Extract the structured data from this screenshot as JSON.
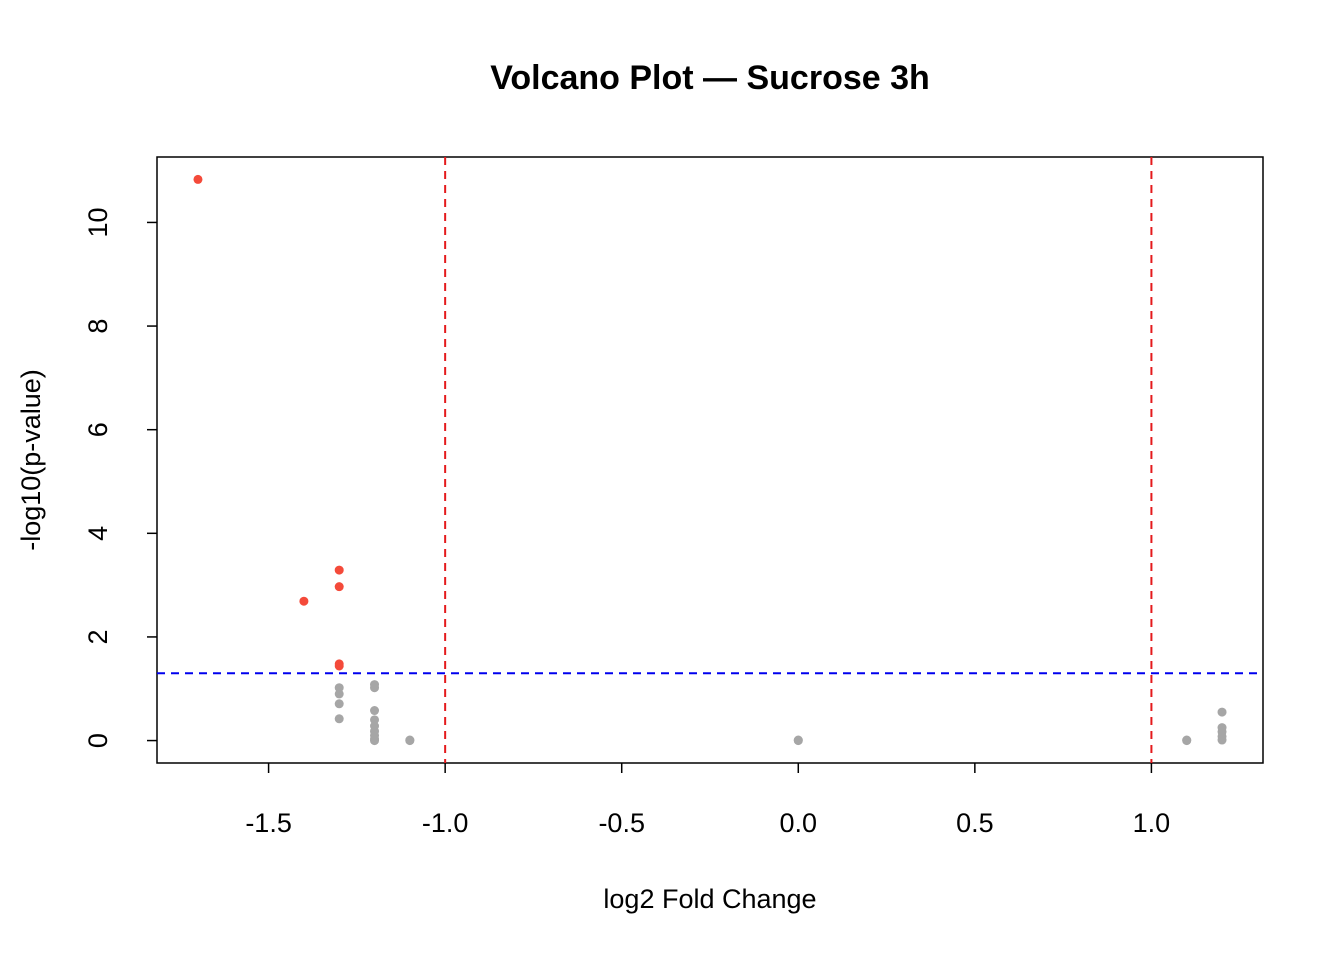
{
  "chart_data": {
    "type": "scatter",
    "title": "Volcano Plot — Sucrose 3h",
    "x_label": "log2 Fold Change",
    "y_label": "-log10(p-value)",
    "xlim": [
      -1.816,
      1.316
    ],
    "ylim": [
      -0.433,
      11.263
    ],
    "xticks": [
      -1.5,
      {
        "value": -1.0,
        "label": "-1.0"
      },
      -0.5,
      {
        "value": 0.0,
        "label": "0.0"
      },
      0.5,
      {
        "value": 1.0,
        "label": "1.0"
      }
    ],
    "yticks": [
      0,
      2,
      4,
      6,
      8,
      10
    ],
    "vlines": [
      -1,
      1
    ],
    "vline_color": "#e41a1c",
    "hline": 1.3,
    "hline_color": "#0000ee",
    "series": [
      {
        "color": "#f44a3a",
        "x": [
          -1.7,
          -1.4,
          -1.3,
          -1.3,
          -1.3,
          -1.3
        ],
        "values": [
          10.83,
          2.69,
          3.29,
          2.97,
          1.48,
          1.44
        ]
      },
      {
        "color": "#a6a6a6",
        "x": [
          -1.3,
          -1.3,
          -1.3,
          -1.3,
          -1.2,
          -1.2,
          -1.2,
          -1.2,
          -1.2,
          -1.2,
          -1.2,
          -1.2,
          -1.2,
          -1.1,
          -1.1,
          0,
          0,
          1.1,
          1.1,
          1.2,
          1.2,
          1.2,
          1.2,
          1.2
        ],
        "values": [
          1.02,
          0.9,
          0.71,
          0.42,
          1.08,
          1.02,
          0.58,
          0.4,
          0.28,
          0.18,
          0.1,
          0.03,
          0,
          0,
          0.01,
          0,
          0.01,
          0,
          0.01,
          0.55,
          0.25,
          0.17,
          0.08,
          0.01
        ]
      }
    ]
  }
}
